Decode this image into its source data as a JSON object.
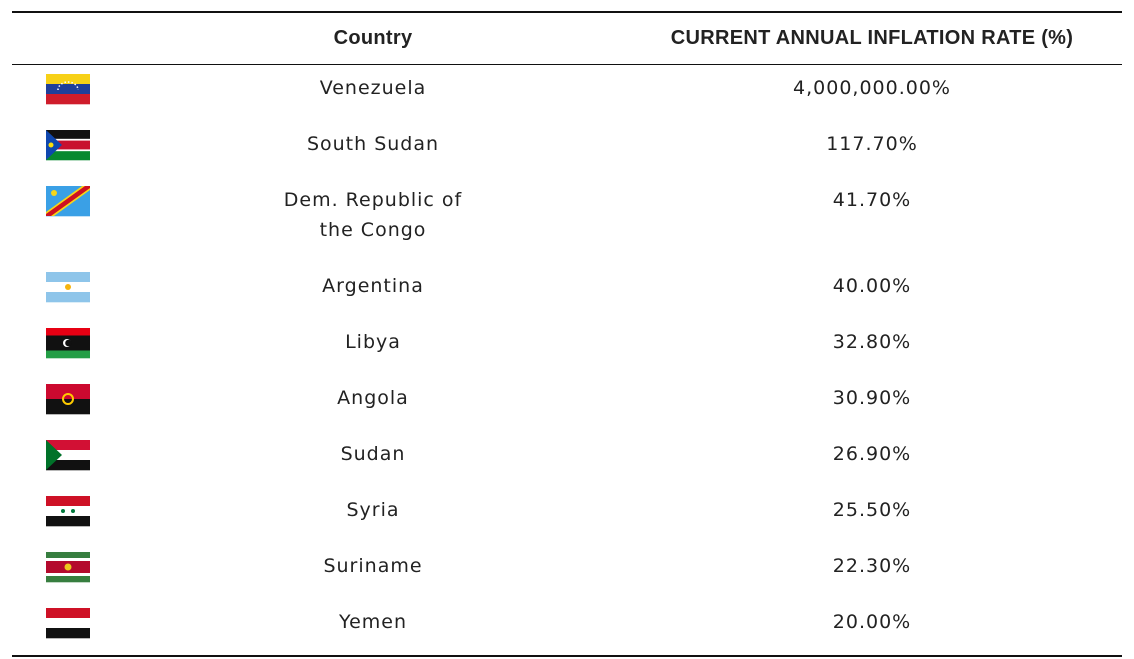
{
  "table": {
    "columns": [
      "Country",
      "CURRENT ANNUAL INFLATION RATE (%)"
    ],
    "rows": [
      [
        "Venezuela",
        "4,000,000.00%"
      ],
      [
        "South Sudan",
        "117.70%"
      ],
      [
        "Dem. Republic of the Congo",
        "41.70%"
      ],
      [
        "Argentina",
        "40.00%"
      ],
      [
        "Libya",
        "32.80%"
      ],
      [
        "Angola",
        "30.90%"
      ],
      [
        "Sudan",
        "26.90%"
      ],
      [
        "Syria",
        "25.50%"
      ],
      [
        "Suriname",
        "22.30%"
      ],
      [
        "Yemen",
        "20.00%"
      ]
    ]
  }
}
